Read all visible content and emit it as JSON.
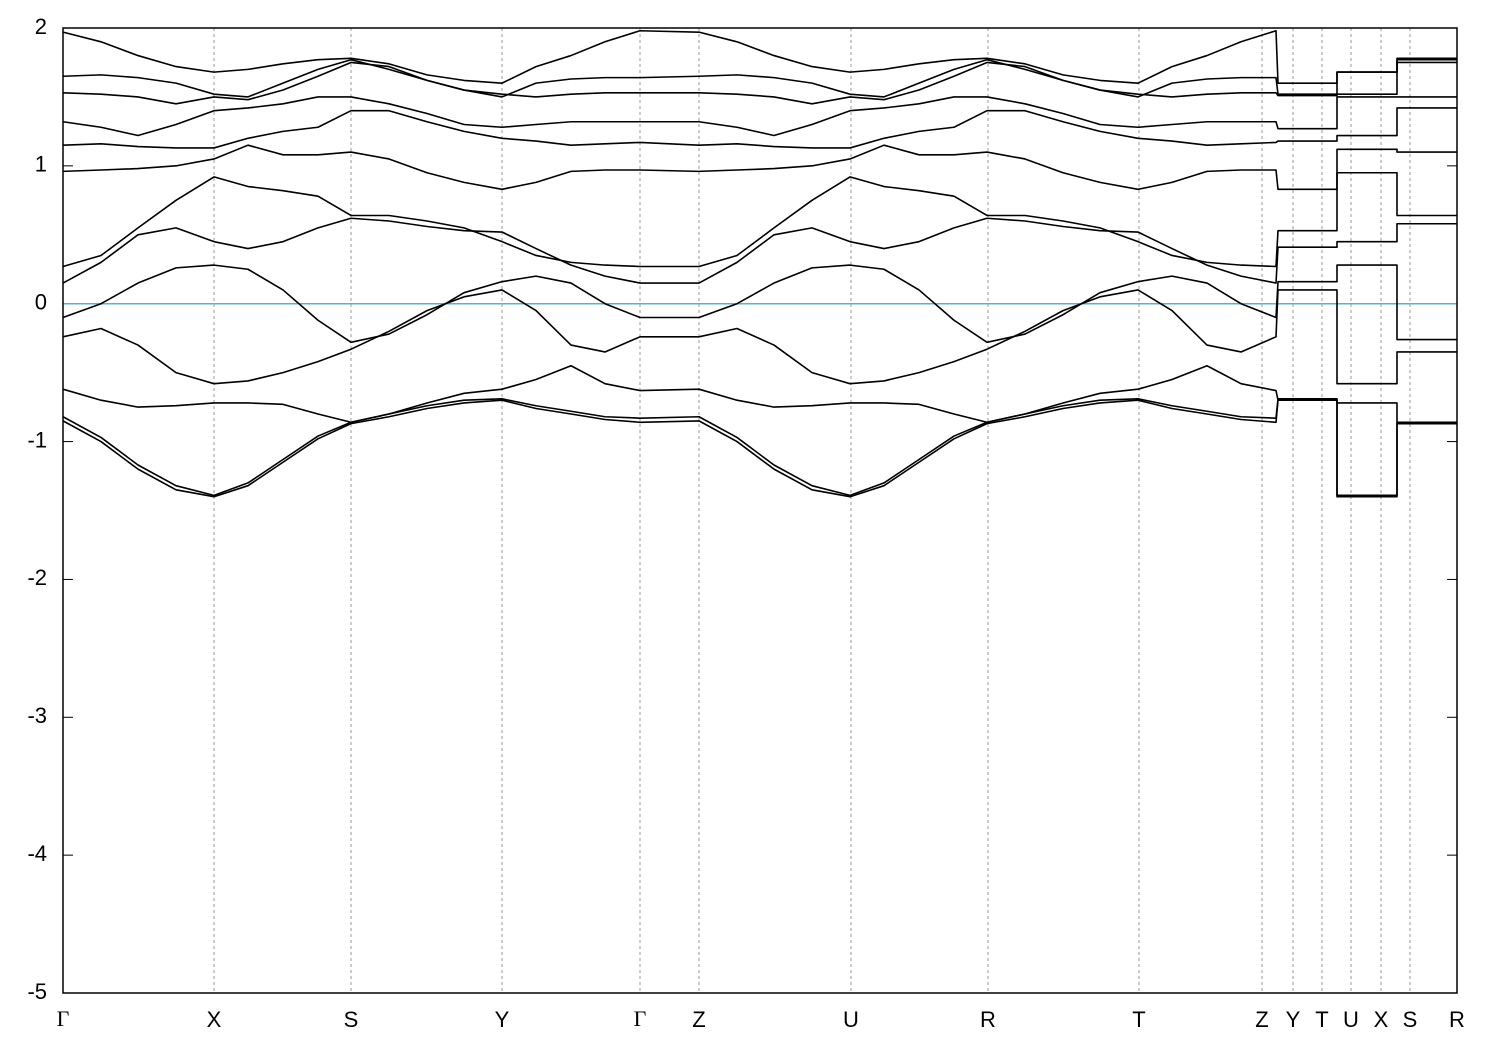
{
  "chart_data": {
    "type": "line",
    "x": [
      0,
      38,
      75,
      113,
      151,
      185,
      220,
      255,
      288,
      326,
      364,
      401,
      439,
      473,
      508,
      542,
      577,
      636,
      674,
      711,
      749,
      787,
      821,
      856,
      891,
      924,
      962,
      1000,
      1037,
      1075,
      1109,
      1144,
      1178,
      1213,
      1215,
      1274,
      1274,
      1334,
      1334,
      1394
    ],
    "xlim": [
      0,
      1394
    ],
    "xticks": [
      {
        "value": 0,
        "label": "Γ"
      },
      {
        "value": 151,
        "label": "X"
      },
      {
        "value": 288,
        "label": "S"
      },
      {
        "value": 439,
        "label": "Y"
      },
      {
        "value": 577,
        "label": "Γ"
      },
      {
        "value": 636,
        "label": "Z"
      },
      {
        "value": 788,
        "label": "U"
      },
      {
        "value": 925,
        "label": "R"
      },
      {
        "value": 1076,
        "label": "T"
      },
      {
        "value": 1199,
        "label": "Z"
      },
      {
        "value": 1230,
        "label": "Y"
      },
      {
        "value": 1259,
        "label": "T"
      },
      {
        "value": 1288,
        "label": "U"
      },
      {
        "value": 1318,
        "label": "X"
      },
      {
        "value": 1347,
        "label": "S"
      },
      {
        "value": 1394,
        "label": "R"
      }
    ],
    "ylim": [
      -5,
      2
    ],
    "yticks": [
      -5,
      -4,
      -3,
      -2,
      -1,
      0,
      1,
      2
    ],
    "grid": "x",
    "fermi_level": 0,
    "fermi_color": "#5ab4c8",
    "series": [
      {
        "color": "#000000",
        "values": [
          -0.85,
          -1.0,
          -1.2,
          -1.35,
          -1.4,
          -1.32,
          -1.15,
          -0.98,
          -0.87,
          -0.82,
          -0.76,
          -0.72,
          -0.7,
          -0.76,
          -0.8,
          -0.84,
          -0.86,
          -0.85,
          -1.0,
          -1.2,
          -1.35,
          -1.4,
          -1.32,
          -1.15,
          -0.98,
          -0.87,
          -0.82,
          -0.76,
          -0.72,
          -0.7,
          -0.76,
          -0.8,
          -0.84,
          -0.86,
          -0.7,
          -0.7,
          -1.4,
          -1.4,
          -0.87,
          -0.87
        ]
      },
      {
        "color": "#000000",
        "values": [
          -0.82,
          -0.97,
          -1.17,
          -1.32,
          -1.39,
          -1.3,
          -1.13,
          -0.96,
          -0.86,
          -0.8,
          -0.74,
          -0.7,
          -0.69,
          -0.74,
          -0.78,
          -0.82,
          -0.83,
          -0.82,
          -0.97,
          -1.17,
          -1.32,
          -1.39,
          -1.3,
          -1.13,
          -0.96,
          -0.86,
          -0.8,
          -0.74,
          -0.7,
          -0.69,
          -0.74,
          -0.78,
          -0.82,
          -0.83,
          -0.69,
          -0.69,
          -1.39,
          -1.39,
          -0.86,
          -0.86
        ]
      },
      {
        "color": "#000000",
        "values": [
          -0.62,
          -0.7,
          -0.75,
          -0.74,
          -0.72,
          -0.72,
          -0.73,
          -0.8,
          -0.86,
          -0.8,
          -0.72,
          -0.65,
          -0.62,
          -0.55,
          -0.45,
          -0.58,
          -0.63,
          -0.62,
          -0.7,
          -0.75,
          -0.74,
          -0.72,
          -0.72,
          -0.73,
          -0.8,
          -0.86,
          -0.8,
          -0.72,
          -0.65,
          -0.62,
          -0.55,
          -0.45,
          -0.58,
          -0.63,
          -0.7,
          -0.7,
          -0.72,
          -0.72,
          -0.86,
          -0.86
        ]
      },
      {
        "color": "#000000",
        "values": [
          -0.24,
          -0.18,
          -0.3,
          -0.5,
          -0.58,
          -0.56,
          -0.5,
          -0.42,
          -0.33,
          -0.2,
          -0.05,
          0.05,
          0.1,
          -0.05,
          -0.3,
          -0.35,
          -0.24,
          -0.24,
          -0.18,
          -0.3,
          -0.5,
          -0.58,
          -0.56,
          -0.5,
          -0.42,
          -0.33,
          -0.2,
          -0.05,
          0.05,
          0.1,
          -0.05,
          -0.3,
          -0.35,
          -0.24,
          0.1,
          0.1,
          -0.58,
          -0.58,
          -0.35,
          -0.35
        ]
      },
      {
        "color": "#000000",
        "values": [
          -0.1,
          0.0,
          0.15,
          0.26,
          0.28,
          0.25,
          0.1,
          -0.12,
          -0.28,
          -0.22,
          -0.08,
          0.08,
          0.16,
          0.2,
          0.15,
          0.0,
          -0.1,
          -0.1,
          0.0,
          0.15,
          0.26,
          0.28,
          0.25,
          0.1,
          -0.12,
          -0.28,
          -0.22,
          -0.08,
          0.08,
          0.16,
          0.2,
          0.15,
          0.0,
          -0.1,
          0.16,
          0.16,
          0.28,
          0.28,
          -0.26,
          -0.26
        ]
      },
      {
        "color": "#000000",
        "values": [
          0.15,
          0.3,
          0.5,
          0.55,
          0.45,
          0.4,
          0.45,
          0.55,
          0.62,
          0.6,
          0.56,
          0.53,
          0.52,
          0.4,
          0.28,
          0.2,
          0.15,
          0.15,
          0.3,
          0.5,
          0.55,
          0.45,
          0.4,
          0.45,
          0.55,
          0.62,
          0.6,
          0.56,
          0.53,
          0.52,
          0.4,
          0.28,
          0.2,
          0.15,
          0.41,
          0.41,
          0.45,
          0.45,
          0.58,
          0.58
        ]
      },
      {
        "color": "#000000",
        "values": [
          0.27,
          0.35,
          0.55,
          0.75,
          0.92,
          0.85,
          0.82,
          0.78,
          0.64,
          0.64,
          0.6,
          0.55,
          0.45,
          0.35,
          0.3,
          0.28,
          0.27,
          0.27,
          0.35,
          0.55,
          0.75,
          0.92,
          0.85,
          0.82,
          0.78,
          0.64,
          0.64,
          0.6,
          0.55,
          0.45,
          0.35,
          0.3,
          0.28,
          0.27,
          0.53,
          0.53,
          0.95,
          0.95,
          0.64,
          0.64
        ]
      },
      {
        "color": "#000000",
        "values": [
          0.96,
          0.97,
          0.98,
          1.0,
          1.05,
          1.15,
          1.08,
          1.08,
          1.1,
          1.05,
          0.95,
          0.88,
          0.83,
          0.88,
          0.96,
          0.97,
          0.97,
          0.96,
          0.97,
          0.98,
          1.0,
          1.05,
          1.15,
          1.08,
          1.08,
          1.1,
          1.05,
          0.95,
          0.88,
          0.83,
          0.88,
          0.96,
          0.97,
          0.97,
          0.83,
          0.83,
          1.12,
          1.12,
          1.1,
          1.1
        ]
      },
      {
        "color": "#000000",
        "values": [
          1.15,
          1.16,
          1.14,
          1.13,
          1.13,
          1.2,
          1.25,
          1.28,
          1.4,
          1.4,
          1.32,
          1.25,
          1.2,
          1.18,
          1.15,
          1.16,
          1.17,
          1.15,
          1.16,
          1.14,
          1.13,
          1.13,
          1.2,
          1.25,
          1.28,
          1.4,
          1.4,
          1.32,
          1.25,
          1.2,
          1.18,
          1.15,
          1.16,
          1.17,
          1.18,
          1.18,
          1.22,
          1.22,
          1.42,
          1.42
        ]
      },
      {
        "color": "#000000",
        "values": [
          1.32,
          1.28,
          1.22,
          1.3,
          1.4,
          1.42,
          1.45,
          1.5,
          1.5,
          1.45,
          1.38,
          1.3,
          1.28,
          1.3,
          1.32,
          1.32,
          1.32,
          1.32,
          1.28,
          1.22,
          1.3,
          1.4,
          1.42,
          1.45,
          1.5,
          1.5,
          1.45,
          1.38,
          1.3,
          1.28,
          1.3,
          1.32,
          1.32,
          1.32,
          1.27,
          1.27,
          1.5,
          1.5,
          1.5,
          1.5
        ]
      },
      {
        "color": "#000000",
        "values": [
          1.53,
          1.52,
          1.5,
          1.45,
          1.5,
          1.48,
          1.55,
          1.65,
          1.75,
          1.72,
          1.62,
          1.55,
          1.52,
          1.5,
          1.52,
          1.53,
          1.53,
          1.53,
          1.52,
          1.5,
          1.45,
          1.5,
          1.48,
          1.55,
          1.65,
          1.75,
          1.72,
          1.62,
          1.55,
          1.52,
          1.5,
          1.52,
          1.53,
          1.53,
          1.51,
          1.51,
          1.68,
          1.68,
          1.75,
          1.75
        ]
      },
      {
        "color": "#000000",
        "values": [
          1.97,
          1.9,
          1.8,
          1.72,
          1.68,
          1.7,
          1.74,
          1.77,
          1.78,
          1.74,
          1.66,
          1.62,
          1.6,
          1.72,
          1.8,
          1.9,
          1.98,
          1.97,
          1.9,
          1.8,
          1.72,
          1.68,
          1.7,
          1.74,
          1.77,
          1.78,
          1.74,
          1.66,
          1.62,
          1.6,
          1.72,
          1.8,
          1.9,
          1.98,
          1.6,
          1.6,
          1.68,
          1.68,
          1.78,
          1.78
        ]
      },
      {
        "color": "#000000",
        "values": [
          1.65,
          1.66,
          1.64,
          1.6,
          1.52,
          1.5,
          1.6,
          1.7,
          1.77,
          1.7,
          1.62,
          1.55,
          1.5,
          1.6,
          1.63,
          1.64,
          1.64,
          1.65,
          1.66,
          1.64,
          1.6,
          1.52,
          1.5,
          1.6,
          1.7,
          1.77,
          1.7,
          1.62,
          1.55,
          1.5,
          1.6,
          1.63,
          1.64,
          1.64,
          1.52,
          1.52,
          1.52,
          1.52,
          1.77,
          1.77
        ]
      }
    ]
  }
}
